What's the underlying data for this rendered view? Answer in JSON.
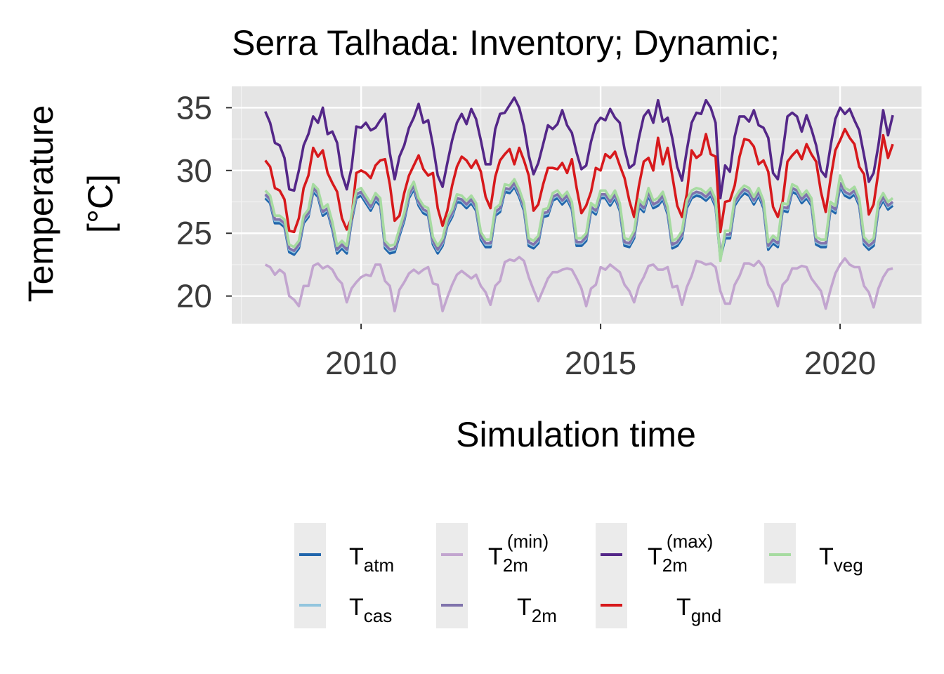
{
  "chart_data": {
    "type": "line",
    "title": "Serra Talhada: Inventory; Dynamic;",
    "xlabel": "Simulation time",
    "ylabel_lines": [
      "Temperature",
      "[°C]"
    ],
    "x_ticks": [
      2010,
      2015,
      2020
    ],
    "y_ticks": [
      20,
      25,
      30,
      35
    ],
    "xlim": [
      2007.3,
      2021.7
    ],
    "ylim": [
      17.8,
      36.7
    ],
    "grid": true,
    "legend_position": "bottom",
    "x": [
      2008.0,
      2008.1,
      2008.2,
      2008.3,
      2008.4,
      2008.5,
      2008.6,
      2008.7,
      2008.8,
      2008.9,
      2009.0,
      2009.1,
      2009.2,
      2009.3,
      2009.4,
      2009.5,
      2009.6,
      2009.7,
      2009.8,
      2009.9,
      2010.0,
      2010.1,
      2010.2,
      2010.3,
      2010.4,
      2010.5,
      2010.6,
      2010.7,
      2010.8,
      2010.9,
      2011.0,
      2011.1,
      2011.2,
      2011.3,
      2011.4,
      2011.5,
      2011.6,
      2011.7,
      2011.8,
      2011.9,
      2012.0,
      2012.1,
      2012.2,
      2012.3,
      2012.4,
      2012.5,
      2012.6,
      2012.7,
      2012.8,
      2012.9,
      2013.0,
      2013.1,
      2013.2,
      2013.3,
      2013.4,
      2013.5,
      2013.6,
      2013.7,
      2013.8,
      2013.9,
      2014.0,
      2014.1,
      2014.2,
      2014.3,
      2014.4,
      2014.5,
      2014.6,
      2014.7,
      2014.8,
      2014.9,
      2015.0,
      2015.1,
      2015.2,
      2015.3,
      2015.4,
      2015.5,
      2015.6,
      2015.7,
      2015.8,
      2015.9,
      2016.0,
      2016.1,
      2016.2,
      2016.3,
      2016.4,
      2016.5,
      2016.6,
      2016.7,
      2016.8,
      2016.9,
      2017.0,
      2017.1,
      2017.2,
      2017.3,
      2017.4,
      2017.5,
      2017.6,
      2017.7,
      2017.8,
      2017.9,
      2018.0,
      2018.1,
      2018.2,
      2018.3,
      2018.4,
      2018.5,
      2018.6,
      2018.7,
      2018.8,
      2018.9,
      2019.0,
      2019.1,
      2019.2,
      2019.3,
      2019.4,
      2019.5,
      2019.6,
      2019.7,
      2019.8,
      2019.9,
      2020.0,
      2020.1,
      2020.2,
      2020.3,
      2020.4,
      2020.5,
      2020.6,
      2020.7,
      2020.8,
      2020.9,
      2021.0,
      2021.1
    ],
    "series": [
      {
        "name": "T_atm",
        "label_main": "T",
        "label_sub": "atm",
        "label_sup": "",
        "color": "#2166ac",
        "values": [
          27.8,
          27.4,
          25.8,
          25.8,
          25.5,
          23.5,
          23.3,
          23.8,
          25.8,
          26.3,
          28.3,
          27.9,
          26.4,
          26.7,
          25.3,
          23.4,
          23.8,
          23.4,
          25.9,
          27.8,
          28.0,
          27.4,
          26.8,
          27.6,
          27.2,
          23.8,
          23.4,
          23.5,
          24.8,
          26.0,
          27.8,
          28.5,
          27.2,
          26.6,
          26.4,
          24.1,
          23.4,
          24.0,
          25.6,
          26.3,
          27.5,
          27.4,
          27.0,
          27.4,
          26.8,
          24.5,
          23.9,
          23.9,
          26.4,
          26.7,
          28.3,
          28.2,
          28.7,
          27.9,
          26.8,
          24.0,
          23.8,
          24.2,
          26.3,
          26.4,
          27.6,
          27.8,
          27.3,
          27.7,
          26.9,
          24.0,
          24.0,
          24.4,
          26.8,
          26.5,
          27.8,
          27.8,
          27.2,
          27.8,
          26.8,
          24.0,
          23.9,
          24.6,
          27.1,
          26.7,
          28.0,
          27.0,
          27.2,
          27.7,
          26.5,
          23.8,
          24.0,
          24.6,
          27.0,
          27.8,
          28.0,
          27.9,
          27.6,
          28.0,
          27.1,
          23.0,
          24.6,
          24.6,
          27.2,
          27.8,
          28.2,
          28.0,
          27.3,
          28.0,
          27.0,
          23.7,
          24.2,
          23.9,
          26.8,
          26.7,
          28.3,
          28.1,
          27.4,
          27.8,
          27.2,
          24.1,
          23.9,
          23.9,
          26.9,
          26.6,
          28.7,
          28.0,
          27.8,
          28.1,
          27.2,
          24.1,
          23.7,
          24.0,
          26.9,
          27.6,
          26.9,
          27.2
        ]
      },
      {
        "name": "T_cas",
        "label_main": "T",
        "label_sub": "cas",
        "label_sup": "",
        "color": "#92c5de",
        "values": [
          28.0,
          27.6,
          26.0,
          26.0,
          25.7,
          23.7,
          23.5,
          24.0,
          26.0,
          26.5,
          28.5,
          28.1,
          26.6,
          26.9,
          25.5,
          23.6,
          24.0,
          23.6,
          26.1,
          28.0,
          28.2,
          27.6,
          27.0,
          27.8,
          27.4,
          24.0,
          23.6,
          23.7,
          25.0,
          26.2,
          28.0,
          28.7,
          27.4,
          26.8,
          26.6,
          24.3,
          23.6,
          24.2,
          25.8,
          26.5,
          27.7,
          27.6,
          27.2,
          27.6,
          27.0,
          24.7,
          24.1,
          24.1,
          26.6,
          26.9,
          28.5,
          28.4,
          28.9,
          28.1,
          27.0,
          24.2,
          24.0,
          24.4,
          26.5,
          26.6,
          27.8,
          28.0,
          27.5,
          27.9,
          27.1,
          24.2,
          24.2,
          24.6,
          27.0,
          26.7,
          28.0,
          28.0,
          27.4,
          28.0,
          27.0,
          24.2,
          24.1,
          24.8,
          27.3,
          26.9,
          28.2,
          27.2,
          27.4,
          27.9,
          26.7,
          24.0,
          24.2,
          24.8,
          27.2,
          28.0,
          28.2,
          28.1,
          27.8,
          28.2,
          27.3,
          23.2,
          24.8,
          24.8,
          27.4,
          28.0,
          28.4,
          28.2,
          27.5,
          28.2,
          27.2,
          23.9,
          24.4,
          24.1,
          27.0,
          26.9,
          28.5,
          28.3,
          27.6,
          28.0,
          27.4,
          24.3,
          24.1,
          24.1,
          27.1,
          26.8,
          28.9,
          28.2,
          28.0,
          28.3,
          27.4,
          24.3,
          23.9,
          24.2,
          27.1,
          27.8,
          27.1,
          27.4
        ]
      },
      {
        "name": "T_2m (min)",
        "label_main": "T",
        "label_sub": "2m",
        "label_sup": "(min)",
        "color": "#c2a5cf",
        "values": [
          22.5,
          22.3,
          21.7,
          22.1,
          21.8,
          20.0,
          19.7,
          19.2,
          20.8,
          20.8,
          22.4,
          22.6,
          22.2,
          22.4,
          22.1,
          21.4,
          21.0,
          19.5,
          20.6,
          21.1,
          21.5,
          21.7,
          21.6,
          22.5,
          22.5,
          21.2,
          20.8,
          18.8,
          20.5,
          21.1,
          21.8,
          22.1,
          21.8,
          22.1,
          22.3,
          21.0,
          20.9,
          18.8,
          19.9,
          20.9,
          21.7,
          22.0,
          21.7,
          21.4,
          21.7,
          20.8,
          20.3,
          19.3,
          20.8,
          21.2,
          22.7,
          22.9,
          22.8,
          23.1,
          22.8,
          21.5,
          20.5,
          19.6,
          20.5,
          21.4,
          21.9,
          21.9,
          22.1,
          22.2,
          22.1,
          21.4,
          20.6,
          19.2,
          20.6,
          20.9,
          22.3,
          22.1,
          22.5,
          22.2,
          21.9,
          20.9,
          20.4,
          19.5,
          20.8,
          21.5,
          22.4,
          22.5,
          22.1,
          22.1,
          22.3,
          20.7,
          20.8,
          19.3,
          20.7,
          21.6,
          22.8,
          22.7,
          22.5,
          22.6,
          22.3,
          20.4,
          19.4,
          19.4,
          20.9,
          21.6,
          22.6,
          22.6,
          22.4,
          22.8,
          22.3,
          20.9,
          20.3,
          19.2,
          20.9,
          21.3,
          22.2,
          22.2,
          22.4,
          22.3,
          21.4,
          20.9,
          20.4,
          19.0,
          20.5,
          21.8,
          22.5,
          23.0,
          22.5,
          22.3,
          22.3,
          20.8,
          20.3,
          19.1,
          20.6,
          21.5,
          22.1,
          22.2
        ]
      },
      {
        "name": "T_2m",
        "label_main": "T",
        "label_sub": "2m",
        "label_sup": "",
        "color": "#8073ac",
        "values": [
          28.1,
          27.7,
          26.1,
          26.1,
          25.8,
          23.8,
          23.6,
          24.1,
          26.1,
          26.6,
          28.6,
          28.2,
          26.7,
          27.0,
          25.6,
          23.7,
          24.1,
          23.7,
          26.2,
          28.1,
          28.3,
          27.7,
          27.1,
          27.9,
          27.5,
          24.1,
          23.7,
          23.8,
          25.1,
          26.3,
          28.1,
          28.8,
          27.5,
          26.9,
          26.7,
          24.4,
          23.7,
          24.3,
          25.9,
          26.6,
          27.8,
          27.7,
          27.3,
          27.7,
          27.1,
          24.8,
          24.2,
          24.2,
          26.7,
          27.0,
          28.6,
          28.5,
          29.0,
          28.2,
          27.1,
          24.3,
          24.1,
          24.5,
          26.6,
          26.7,
          27.9,
          28.1,
          27.6,
          28.0,
          27.2,
          24.3,
          24.3,
          24.7,
          27.1,
          26.8,
          28.1,
          28.1,
          27.5,
          28.1,
          27.1,
          24.3,
          24.2,
          24.9,
          27.4,
          27.0,
          28.3,
          27.3,
          27.5,
          28.0,
          26.8,
          24.1,
          24.3,
          24.9,
          27.3,
          28.1,
          28.3,
          28.2,
          27.9,
          28.3,
          27.4,
          23.3,
          24.9,
          24.9,
          27.5,
          28.1,
          28.5,
          28.3,
          27.6,
          28.3,
          27.3,
          24.0,
          24.5,
          24.2,
          27.1,
          27.0,
          28.6,
          28.4,
          27.7,
          28.1,
          27.5,
          24.4,
          24.2,
          24.2,
          27.2,
          26.9,
          29.0,
          28.3,
          28.1,
          28.4,
          27.5,
          24.4,
          24.0,
          24.3,
          27.2,
          27.9,
          27.2,
          27.5
        ]
      },
      {
        "name": "T_2m (max)",
        "label_main": "T",
        "label_sub": "2m",
        "label_sup": "(max)",
        "color": "#542788",
        "values": [
          34.7,
          33.8,
          32.2,
          32.0,
          31.0,
          28.5,
          28.4,
          30.0,
          32.0,
          32.9,
          34.3,
          33.8,
          35.0,
          32.9,
          33.1,
          32.2,
          29.7,
          28.5,
          30.2,
          33.5,
          33.4,
          33.8,
          33.2,
          33.4,
          34.0,
          34.5,
          31.4,
          29.3,
          31.1,
          32.0,
          33.4,
          34.2,
          35.3,
          33.8,
          34.0,
          32.0,
          29.6,
          28.7,
          30.6,
          32.4,
          33.8,
          34.5,
          33.7,
          34.9,
          34.1,
          32.4,
          30.5,
          30.5,
          33.3,
          34.5,
          34.6,
          35.2,
          35.8,
          35.0,
          33.5,
          31.2,
          29.7,
          30.6,
          32.1,
          33.6,
          33.3,
          33.7,
          34.8,
          33.6,
          33.0,
          31.4,
          30.1,
          30.4,
          32.3,
          33.7,
          34.2,
          34.0,
          34.9,
          34.2,
          33.8,
          31.7,
          30.2,
          30.5,
          32.6,
          34.3,
          34.8,
          33.8,
          35.6,
          33.9,
          34.2,
          32.5,
          30.3,
          29.2,
          31.6,
          33.8,
          34.6,
          34.5,
          35.6,
          35.0,
          33.8,
          27.8,
          30.4,
          29.9,
          32.7,
          34.3,
          34.3,
          33.9,
          34.8,
          33.6,
          33.4,
          32.6,
          29.8,
          29.3,
          31.4,
          34.3,
          34.6,
          34.3,
          33.1,
          34.4,
          33.3,
          32.0,
          30.0,
          29.5,
          31.9,
          34.1,
          35.0,
          34.5,
          34.9,
          34.0,
          33.2,
          31.2,
          29.1,
          29.8,
          32.0,
          34.8,
          32.8,
          34.4
        ]
      },
      {
        "name": "T_gnd",
        "label_main": "T",
        "label_sub": "gnd",
        "label_sup": "",
        "color": "#d7191c",
        "values": [
          30.8,
          30.3,
          28.6,
          28.4,
          27.7,
          25.2,
          25.1,
          26.2,
          28.6,
          29.6,
          31.8,
          31.1,
          31.6,
          29.8,
          29.0,
          28.3,
          26.2,
          25.3,
          26.2,
          29.8,
          30.0,
          29.8,
          29.4,
          30.4,
          30.8,
          30.9,
          28.9,
          26.0,
          26.4,
          28.2,
          29.6,
          30.4,
          31.2,
          30.1,
          29.6,
          29.8,
          27.0,
          25.6,
          26.8,
          28.8,
          30.3,
          31.1,
          30.8,
          30.2,
          30.8,
          29.9,
          27.9,
          27.0,
          29.5,
          30.8,
          31.3,
          31.7,
          30.5,
          31.8,
          30.8,
          29.6,
          26.8,
          27.3,
          28.9,
          30.2,
          30.2,
          30.1,
          30.6,
          29.8,
          30.9,
          28.6,
          26.6,
          27.2,
          28.3,
          30.2,
          30.0,
          31.3,
          31.0,
          31.5,
          30.4,
          29.4,
          27.6,
          26.3,
          28.8,
          30.7,
          31.0,
          30.0,
          32.6,
          30.5,
          31.8,
          29.5,
          27.2,
          26.3,
          28.1,
          31.6,
          31.0,
          31.3,
          32.9,
          31.3,
          31.1,
          25.1,
          27.5,
          27.6,
          28.8,
          31.1,
          32.5,
          32.4,
          31.9,
          30.5,
          30.8,
          29.9,
          27.1,
          26.3,
          27.5,
          30.7,
          31.2,
          31.6,
          30.9,
          32.1,
          31.3,
          30.7,
          28.3,
          26.7,
          29.3,
          31.6,
          32.4,
          33.3,
          32.6,
          32.1,
          30.3,
          29.7,
          26.5,
          27.3,
          29.9,
          32.8,
          31.0,
          32.1
        ]
      },
      {
        "name": "T_veg",
        "label_main": "T",
        "label_sub": "veg",
        "label_sup": "",
        "color": "#a6dba0",
        "values": [
          28.4,
          28.0,
          26.4,
          26.4,
          26.1,
          24.1,
          23.9,
          24.4,
          26.4,
          26.9,
          28.9,
          28.5,
          27.0,
          27.3,
          25.9,
          24.0,
          24.4,
          24.0,
          26.5,
          28.4,
          28.6,
          28.0,
          27.4,
          28.2,
          27.8,
          24.4,
          24.0,
          24.1,
          25.4,
          26.6,
          28.4,
          29.1,
          27.8,
          27.2,
          27.0,
          24.7,
          24.0,
          24.6,
          26.2,
          26.9,
          28.1,
          28.0,
          27.6,
          28.0,
          27.4,
          25.1,
          24.5,
          24.5,
          27.0,
          27.3,
          28.9,
          28.8,
          29.3,
          28.5,
          27.4,
          24.6,
          24.4,
          24.8,
          26.9,
          27.0,
          28.2,
          28.4,
          27.9,
          28.3,
          27.5,
          24.6,
          24.6,
          25.0,
          27.4,
          27.1,
          28.4,
          28.4,
          27.8,
          28.4,
          27.4,
          24.6,
          24.5,
          25.2,
          27.7,
          27.3,
          28.6,
          27.6,
          27.8,
          28.3,
          27.1,
          24.4,
          24.6,
          25.2,
          27.6,
          28.4,
          28.6,
          28.5,
          28.2,
          28.6,
          27.7,
          22.8,
          25.2,
          25.2,
          27.8,
          28.4,
          28.8,
          28.6,
          27.9,
          28.6,
          27.6,
          24.3,
          24.8,
          24.5,
          27.4,
          27.3,
          28.9,
          28.7,
          28.0,
          28.4,
          27.8,
          24.7,
          24.5,
          24.5,
          27.5,
          27.2,
          29.6,
          28.6,
          28.4,
          28.7,
          27.8,
          24.7,
          24.3,
          24.6,
          27.5,
          28.2,
          27.5,
          27.8
        ]
      }
    ]
  }
}
